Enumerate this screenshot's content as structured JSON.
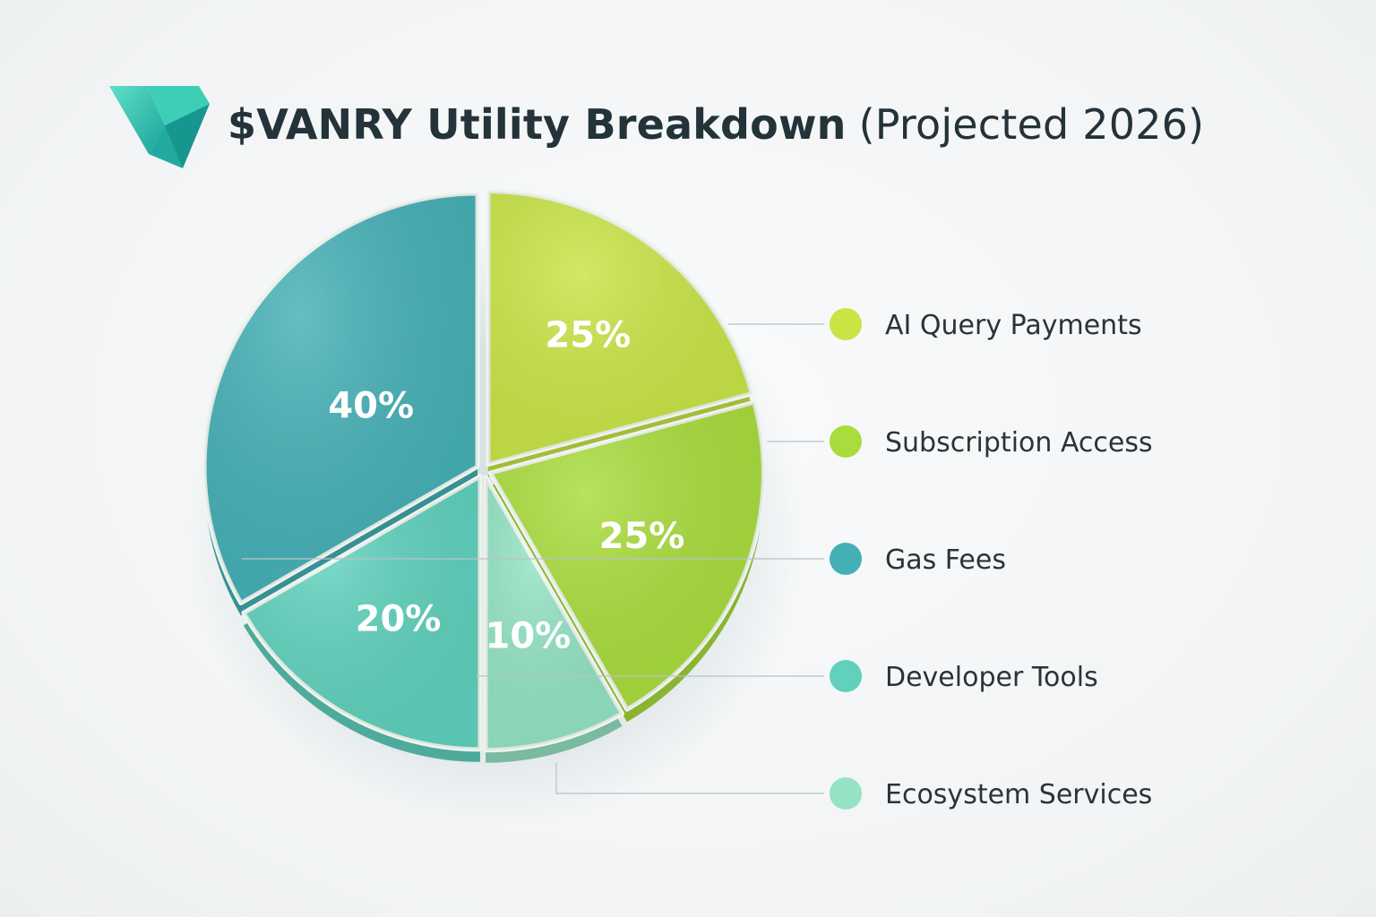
{
  "header": {
    "title_main": "$VANRY Utility Breakdown",
    "title_sub": "(Projected 2026)"
  },
  "logo": {
    "icon": "vanar-logo-icon"
  },
  "chart_data": {
    "type": "pie",
    "title": "$VANRY Utility Breakdown (Projected 2026)",
    "unit": "%",
    "legend_position": "right",
    "series": [
      {
        "name": "AI Query Payments",
        "value": 25,
        "label": "25%",
        "color": "#c9e445"
      },
      {
        "name": "Subscription Access",
        "value": 25,
        "label": "25%",
        "color": "#a9dc3c"
      },
      {
        "name": "Gas Fees",
        "value": 40,
        "label": "40%",
        "color": "#44b0b6"
      },
      {
        "name": "Developer Tools",
        "value": 20,
        "label": "20%",
        "color": "#5fd1bd"
      },
      {
        "name": "Ecosystem Services",
        "value": 10,
        "label": "10%",
        "color": "#93e3c4"
      }
    ]
  }
}
